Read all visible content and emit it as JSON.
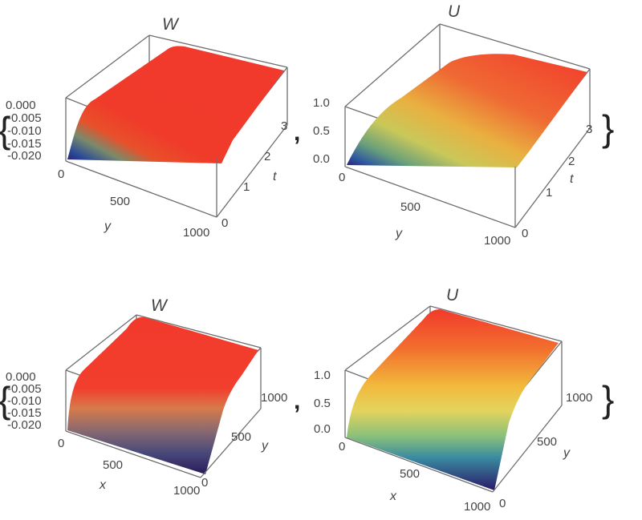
{
  "chart_data": [
    {
      "type": "surface3d",
      "title": "W",
      "zlabel": "",
      "z_ticks": [
        "0.000",
        "-0.005",
        "-0.010",
        "-0.015",
        "-0.020"
      ],
      "left_axis_ticks": [
        "0",
        "500",
        "1000"
      ],
      "left_axis_label": "y",
      "right_axis_ticks": [
        "0",
        "1",
        "2",
        "3"
      ],
      "right_axis_label": "t",
      "zlim": [
        -0.022,
        0.0
      ],
      "colormap": "rainbow",
      "surface_profile": "rises from about -0.021 at y=0 to 0.000 near y≈150, flat at 0.000 for larger y"
    },
    {
      "type": "surface3d",
      "title": "U",
      "z_ticks": [
        "1.0",
        "0.5",
        "0.0"
      ],
      "left_axis_ticks": [
        "0",
        "500",
        "1000"
      ],
      "left_axis_label": "y",
      "right_axis_ticks": [
        "0",
        "1",
        "2",
        "3"
      ],
      "right_axis_label": "t",
      "zlim": [
        0.0,
        1.2
      ],
      "colormap": "rainbow",
      "surface_profile": "rises from 0.0 at y=0 toward 1.0 as y increases"
    },
    {
      "type": "surface3d",
      "title": "W",
      "z_ticks": [
        "0.000",
        "-0.005",
        "-0.010",
        "-0.015",
        "-0.020"
      ],
      "left_axis_ticks": [
        "0",
        "500",
        "1000"
      ],
      "left_axis_label": "x",
      "right_axis_ticks": [
        "0",
        "500",
        "1000"
      ],
      "right_axis_label": "y",
      "zlim": [
        -0.022,
        0.0
      ],
      "colormap": "rainbow",
      "surface_profile": "near -0.021 at small y, rising steeply to 0.000 for y above ~150, uniform in x"
    },
    {
      "type": "surface3d",
      "title": "U",
      "z_ticks": [
        "1.0",
        "0.5",
        "0.0"
      ],
      "left_axis_ticks": [
        "0",
        "500",
        "1000"
      ],
      "left_axis_label": "x",
      "right_axis_ticks": [
        "0",
        "500",
        "1000"
      ],
      "right_axis_label": "y",
      "zlim": [
        0.0,
        1.2
      ],
      "colormap": "rainbow",
      "surface_profile": "0.0 at y=0 rising to 1.0 at large y, uniform in x"
    }
  ],
  "separators": {
    "open_brace": "{",
    "close_brace": "}",
    "comma": ","
  }
}
